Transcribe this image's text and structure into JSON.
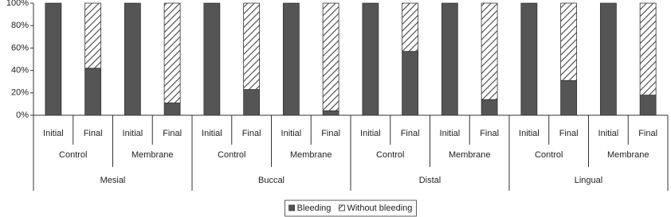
{
  "chart_data": {
    "type": "stacked_bar",
    "categories": [
      "Initial",
      "Final",
      "Initial",
      "Final",
      "Initial",
      "Final",
      "Initial",
      "Final",
      "Initial",
      "Final",
      "Initial",
      "Final",
      "Initial",
      "Final",
      "Initial",
      "Final"
    ],
    "subgroups": [
      "Control",
      "Membrane",
      "Control",
      "Membrane",
      "Control",
      "Membrane",
      "Control",
      "Membrane"
    ],
    "groups": [
      "Mesial",
      "Buccal",
      "Distal",
      "Lingual"
    ],
    "series": [
      {
        "name": "Bleeding",
        "color": "#555555",
        "values": [
          100,
          42,
          100,
          11,
          100,
          23,
          100,
          4,
          100,
          57,
          100,
          14,
          100,
          31,
          100,
          18
        ]
      },
      {
        "name": "Without bleeding",
        "color": "#444444",
        "hatch": true,
        "values": [
          0,
          58,
          0,
          89,
          0,
          77,
          0,
          96,
          0,
          43,
          0,
          86,
          0,
          69,
          0,
          82
        ]
      }
    ],
    "ylim": [
      0,
      100
    ],
    "yticks": [
      {
        "value": 0,
        "label": "0%"
      },
      {
        "value": 20,
        "label": "20%"
      },
      {
        "value": 40,
        "label": "40%"
      },
      {
        "value": 60,
        "label": "60%"
      },
      {
        "value": 80,
        "label": "80%"
      },
      {
        "value": 100,
        "label": "100%"
      }
    ],
    "legend": "bottom"
  }
}
